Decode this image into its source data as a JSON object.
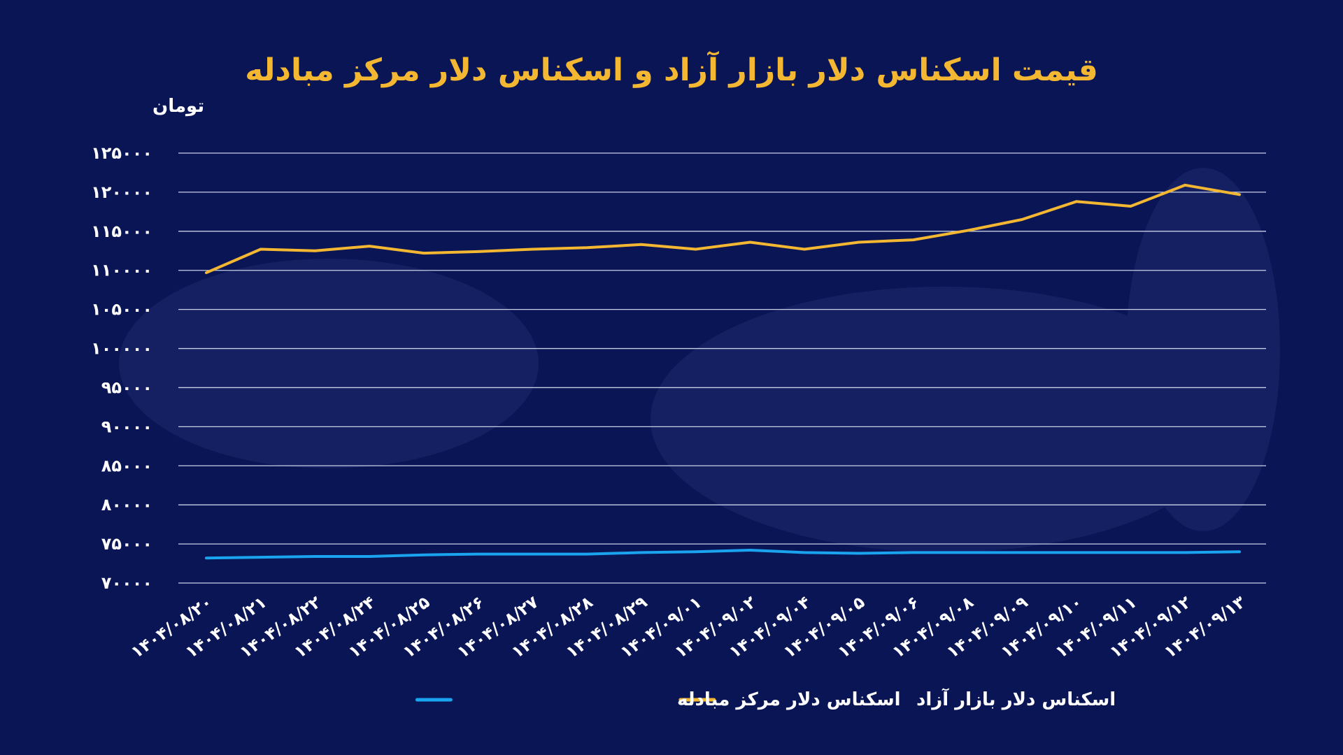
{
  "chart_data": {
    "type": "line",
    "title": "قیمت اسکناس دلار بازار آزاد و اسکناس دلار مرکز مبادله",
    "ylabel": "تومان",
    "xlabel": "",
    "ylim": [
      70000,
      125000
    ],
    "yticks": [
      70000,
      75000,
      80000,
      85000,
      90000,
      95000,
      100000,
      105000,
      110000,
      115000,
      120000,
      125000
    ],
    "ytick_labels": [
      "۷۰۰۰۰",
      "۷۵۰۰۰",
      "۸۰۰۰۰",
      "۸۵۰۰۰",
      "۹۰۰۰۰",
      "۹۵۰۰۰",
      "۱۰۰۰۰۰",
      "۱۰۵۰۰۰",
      "۱۱۰۰۰۰",
      "۱۱۵۰۰۰",
      "۱۲۰۰۰۰",
      "۱۲۵۰۰۰"
    ],
    "grid": true,
    "legend_position": "bottom",
    "categories": [
      "۱۴۰۴/۰۸/۲۰",
      "۱۴۰۴/۰۸/۲۱",
      "۱۴۰۴/۰۸/۲۲",
      "۱۴۰۴/۰۸/۲۴",
      "۱۴۰۴/۰۸/۲۵",
      "۱۴۰۴/۰۸/۲۶",
      "۱۴۰۴/۰۸/۲۷",
      "۱۴۰۴/۰۸/۲۸",
      "۱۴۰۴/۰۸/۲۹",
      "۱۴۰۴/۰۹/۰۱",
      "۱۴۰۴/۰۹/۰۲",
      "۱۴۰۴/۰۹/۰۴",
      "۱۴۰۴/۰۹/۰۵",
      "۱۴۰۴/۰۹/۰۶",
      "۱۴۰۴/۰۹/۰۸",
      "۱۴۰۴/۰۹/۰۹",
      "۱۴۰۴/۰۹/۱۰",
      "۱۴۰۴/۰۹/۱۱",
      "۱۴۰۴/۰۹/۱۲",
      "۱۴۰۴/۰۹/۱۳"
    ],
    "series": [
      {
        "name": "اسکناس دلار بازار آزاد",
        "color": "#f4b731",
        "values": [
          109700,
          112700,
          112500,
          113100,
          112200,
          112400,
          112700,
          112900,
          113300,
          112700,
          113600,
          112700,
          113600,
          113900,
          115100,
          116500,
          118800,
          118200,
          120900,
          119700
        ]
      },
      {
        "name": "اسکناس دلار مرکز مبادله",
        "color": "#1aa3ee",
        "values": [
          73200,
          73300,
          73400,
          73400,
          73600,
          73700,
          73700,
          73700,
          73900,
          74000,
          74200,
          73900,
          73800,
          73900,
          73900,
          73900,
          73900,
          73900,
          73900,
          74000
        ]
      }
    ]
  }
}
